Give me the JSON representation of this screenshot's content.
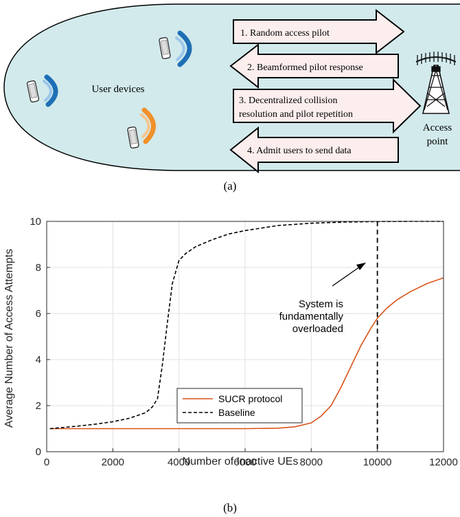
{
  "panel_a": {
    "caption": "(a)",
    "users_label": "User devices",
    "access_point_label_line1": "Access",
    "access_point_label_line2": "point",
    "steps": [
      {
        "line1": "1. Random access pilot",
        "line2": ""
      },
      {
        "line1": "2. Beamformed pilot response",
        "line2": ""
      },
      {
        "line1": "3. Decentralized collision",
        "line2": "resolution and pilot repetition"
      },
      {
        "line1": "4. Admit users to send data",
        "line2": ""
      }
    ],
    "colors": {
      "ellipse_fill": "#d2eaec",
      "arrow_fill": "#fdeeee",
      "signal_blue": "#1f6fb6",
      "signal_orange": "#f0902a"
    }
  },
  "panel_b": {
    "caption": "(b)",
    "annotation_lines": [
      "System is",
      "fundamentally",
      "overloaded"
    ]
  },
  "chart_data": {
    "type": "line",
    "title": "",
    "xlabel": "Number of Inactive UEs",
    "ylabel": "Average Number of Access Attempts",
    "xlim": [
      0,
      12000
    ],
    "ylim": [
      0,
      10
    ],
    "xticks": [
      0,
      2000,
      4000,
      6000,
      8000,
      10000,
      12000
    ],
    "yticks": [
      0,
      2,
      4,
      6,
      8,
      10
    ],
    "grid": true,
    "legend_position": "lower-left",
    "vertical_line_x": 10000,
    "series": [
      {
        "name": "SUCR protocol",
        "color": "#d95319",
        "style": "solid",
        "x": [
          100,
          1000,
          2000,
          3000,
          4000,
          5000,
          6000,
          7000,
          7500,
          8000,
          8300,
          8600,
          8900,
          9200,
          9500,
          9800,
          10000,
          10300,
          10600,
          11000,
          11500,
          12000
        ],
        "y": [
          1.0,
          1.0,
          1.0,
          1.0,
          1.0,
          1.0,
          1.0,
          1.02,
          1.08,
          1.25,
          1.55,
          2.0,
          2.8,
          3.7,
          4.6,
          5.35,
          5.8,
          6.25,
          6.6,
          6.95,
          7.3,
          7.55
        ]
      },
      {
        "name": "Baseline",
        "color": "#000000",
        "style": "dashed",
        "x": [
          100,
          500,
          1000,
          1500,
          2000,
          2500,
          3000,
          3200,
          3350,
          3500,
          3650,
          3800,
          4000,
          4200,
          4500,
          5000,
          5500,
          6000,
          7000,
          8000,
          9000,
          10000,
          11000,
          12000
        ],
        "y": [
          1.0,
          1.05,
          1.12,
          1.2,
          1.3,
          1.45,
          1.7,
          1.95,
          2.3,
          3.8,
          5.6,
          7.3,
          8.3,
          8.6,
          8.9,
          9.2,
          9.45,
          9.6,
          9.82,
          9.92,
          9.97,
          9.99,
          10.0,
          10.0
        ]
      }
    ]
  }
}
